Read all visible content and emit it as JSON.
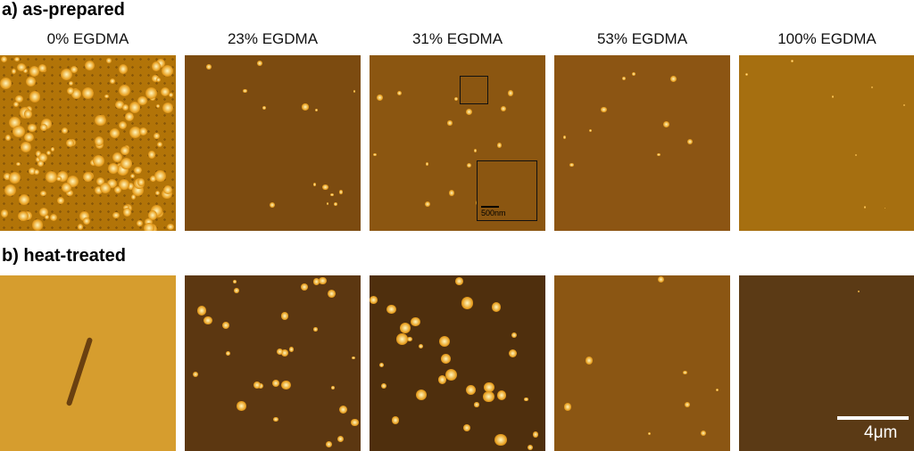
{
  "rows": [
    {
      "label": "a) as-prepared"
    },
    {
      "label": "b) heat-treated"
    }
  ],
  "columns": [
    "0% EGDMA",
    "23% EGDMA",
    "31% EGDMA",
    "53% EGDMA",
    "100% EGDMA"
  ],
  "inset": {
    "scale_label": "500nm"
  },
  "scale_bar": {
    "label": "4μm"
  }
}
